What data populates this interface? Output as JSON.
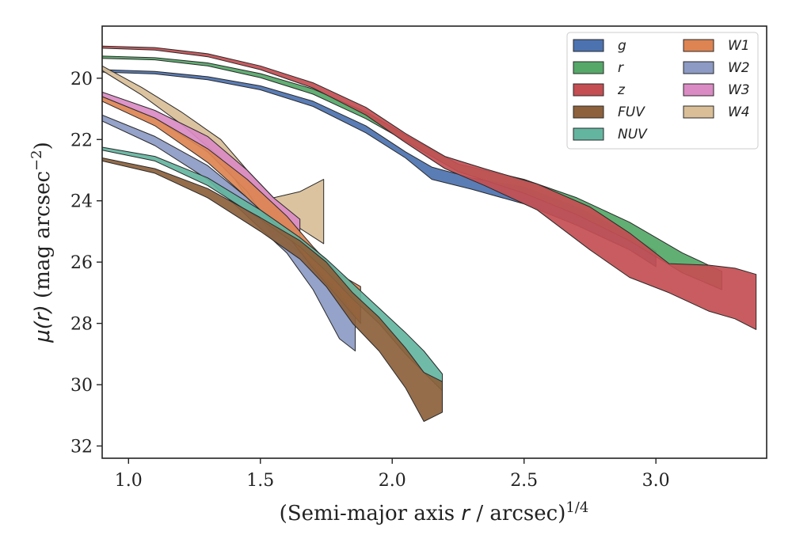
{
  "chart_data": {
    "type": "area",
    "xlabel": "(Semi-major axis r / arcsec)1/4",
    "ylabel": "μ(r) (mag arcsec−2)",
    "xlabel_parts": {
      "pre": "(Semi-major axis ",
      "var": "r",
      "post": " / arcsec)",
      "sup": "1/4"
    },
    "ylabel_parts": {
      "var": "μ(r)",
      "post": " (mag arcsec",
      "sup": "−2",
      "end": ")"
    },
    "xlim": [
      0.9,
      3.42
    ],
    "ylim": [
      32.4,
      18.3
    ],
    "y_inverted": true,
    "xticks": [
      1.0,
      1.5,
      2.0,
      2.5,
      3.0
    ],
    "xtick_labels": [
      "1.0",
      "1.5",
      "2.0",
      "2.5",
      "3.0"
    ],
    "yticks": [
      20,
      22,
      24,
      26,
      28,
      30,
      32
    ],
    "ytick_labels": [
      "20",
      "22",
      "24",
      "26",
      "28",
      "30",
      "32"
    ],
    "legend_position": "top-right",
    "series": [
      {
        "name": "g",
        "color": "#4C72B0",
        "upper": [
          [
            0.9,
            19.72
          ],
          [
            1.1,
            19.78
          ],
          [
            1.3,
            19.95
          ],
          [
            1.5,
            20.25
          ],
          [
            1.7,
            20.75
          ],
          [
            1.9,
            21.55
          ],
          [
            2.05,
            22.4
          ],
          [
            2.15,
            22.9
          ],
          [
            2.3,
            23.25
          ],
          [
            2.5,
            23.55
          ],
          [
            2.7,
            24.2
          ],
          [
            2.9,
            25.1
          ],
          [
            3.0,
            25.65
          ]
        ],
        "lower": [
          [
            0.9,
            19.8
          ],
          [
            1.1,
            19.86
          ],
          [
            1.3,
            20.05
          ],
          [
            1.5,
            20.38
          ],
          [
            1.7,
            20.92
          ],
          [
            1.9,
            21.78
          ],
          [
            2.05,
            22.6
          ],
          [
            2.15,
            23.3
          ],
          [
            2.3,
            23.62
          ],
          [
            2.5,
            24.1
          ],
          [
            2.7,
            24.8
          ],
          [
            2.9,
            25.6
          ],
          [
            3.0,
            26.15
          ]
        ]
      },
      {
        "name": "r",
        "color": "#55A868",
        "upper": [
          [
            0.9,
            19.28
          ],
          [
            1.1,
            19.33
          ],
          [
            1.3,
            19.5
          ],
          [
            1.5,
            19.85
          ],
          [
            1.7,
            20.35
          ],
          [
            1.9,
            21.1
          ],
          [
            2.05,
            21.85
          ],
          [
            2.25,
            22.8
          ],
          [
            2.5,
            23.3
          ],
          [
            2.7,
            23.9
          ],
          [
            2.9,
            24.7
          ],
          [
            3.1,
            25.7
          ],
          [
            3.25,
            26.3
          ]
        ],
        "lower": [
          [
            0.9,
            19.35
          ],
          [
            1.1,
            19.4
          ],
          [
            1.3,
            19.6
          ],
          [
            1.5,
            19.98
          ],
          [
            1.7,
            20.52
          ],
          [
            1.9,
            21.32
          ],
          [
            2.05,
            22.05
          ],
          [
            2.25,
            23.05
          ],
          [
            2.5,
            23.75
          ],
          [
            2.7,
            24.45
          ],
          [
            2.9,
            25.3
          ],
          [
            3.1,
            26.35
          ],
          [
            3.25,
            26.9
          ]
        ]
      },
      {
        "name": "z",
        "color": "#C44E52",
        "upper": [
          [
            0.9,
            18.95
          ],
          [
            1.1,
            19.0
          ],
          [
            1.3,
            19.2
          ],
          [
            1.5,
            19.6
          ],
          [
            1.7,
            20.15
          ],
          [
            1.9,
            20.95
          ],
          [
            2.05,
            21.8
          ],
          [
            2.2,
            22.55
          ],
          [
            2.35,
            22.95
          ],
          [
            2.55,
            23.45
          ],
          [
            2.75,
            24.2
          ],
          [
            2.9,
            25.05
          ],
          [
            3.05,
            26.05
          ],
          [
            3.2,
            26.1
          ],
          [
            3.3,
            26.2
          ],
          [
            3.38,
            26.4
          ]
        ],
        "lower": [
          [
            0.9,
            19.02
          ],
          [
            1.1,
            19.08
          ],
          [
            1.3,
            19.3
          ],
          [
            1.5,
            19.72
          ],
          [
            1.7,
            20.32
          ],
          [
            1.9,
            21.2
          ],
          [
            2.05,
            22.1
          ],
          [
            2.2,
            22.95
          ],
          [
            2.35,
            23.5
          ],
          [
            2.55,
            24.3
          ],
          [
            2.75,
            25.6
          ],
          [
            2.9,
            26.5
          ],
          [
            3.05,
            27.0
          ],
          [
            3.2,
            27.6
          ],
          [
            3.3,
            27.85
          ],
          [
            3.38,
            28.2
          ]
        ]
      },
      {
        "name": "FUV",
        "color": "#8C613C",
        "upper": [
          [
            0.9,
            22.6
          ],
          [
            1.1,
            22.95
          ],
          [
            1.3,
            23.6
          ],
          [
            1.5,
            24.55
          ],
          [
            1.65,
            25.3
          ],
          [
            1.75,
            26.0
          ],
          [
            1.85,
            27.0
          ],
          [
            1.95,
            27.8
          ],
          [
            2.05,
            28.8
          ],
          [
            2.12,
            29.6
          ],
          [
            2.19,
            29.9
          ]
        ],
        "lower": [
          [
            0.9,
            22.7
          ],
          [
            1.1,
            23.1
          ],
          [
            1.3,
            23.9
          ],
          [
            1.5,
            25.0
          ],
          [
            1.65,
            25.9
          ],
          [
            1.75,
            26.8
          ],
          [
            1.85,
            28.0
          ],
          [
            1.95,
            28.9
          ],
          [
            2.05,
            30.1
          ],
          [
            2.12,
            31.2
          ],
          [
            2.19,
            30.9
          ]
        ]
      },
      {
        "name": "NUV",
        "color": "#64B5A0",
        "upper": [
          [
            0.9,
            22.25
          ],
          [
            1.1,
            22.55
          ],
          [
            1.3,
            23.25
          ],
          [
            1.5,
            24.3
          ],
          [
            1.65,
            25.2
          ],
          [
            1.75,
            25.9
          ],
          [
            1.85,
            26.7
          ],
          [
            1.95,
            27.5
          ],
          [
            2.05,
            28.3
          ],
          [
            2.12,
            28.9
          ],
          [
            2.19,
            29.65
          ]
        ],
        "lower": [
          [
            0.9,
            22.35
          ],
          [
            1.1,
            22.7
          ],
          [
            1.3,
            23.5
          ],
          [
            1.5,
            24.6
          ],
          [
            1.65,
            25.5
          ],
          [
            1.75,
            26.3
          ],
          [
            1.85,
            27.2
          ],
          [
            1.95,
            28.0
          ],
          [
            2.05,
            29.0
          ],
          [
            2.12,
            29.6
          ],
          [
            2.19,
            30.2
          ]
        ]
      },
      {
        "name": "W1",
        "color": "#DD8452",
        "upper": [
          [
            0.9,
            20.6
          ],
          [
            1.1,
            21.3
          ],
          [
            1.3,
            22.3
          ],
          [
            1.45,
            23.3
          ],
          [
            1.6,
            24.5
          ],
          [
            1.7,
            25.5
          ],
          [
            1.8,
            26.4
          ],
          [
            1.88,
            26.8
          ]
        ],
        "lower": [
          [
            0.9,
            20.75
          ],
          [
            1.1,
            21.55
          ],
          [
            1.3,
            22.75
          ],
          [
            1.45,
            23.9
          ],
          [
            1.6,
            25.1
          ],
          [
            1.7,
            26.2
          ],
          [
            1.8,
            27.2
          ],
          [
            1.88,
            28.0
          ]
        ]
      },
      {
        "name": "W2",
        "color": "#8C9AC4",
        "upper": [
          [
            0.9,
            21.2
          ],
          [
            1.1,
            21.9
          ],
          [
            1.3,
            22.85
          ],
          [
            1.45,
            23.9
          ],
          [
            1.6,
            25.1
          ],
          [
            1.7,
            26.1
          ],
          [
            1.8,
            27.0
          ],
          [
            1.86,
            27.8
          ]
        ],
        "lower": [
          [
            0.9,
            21.4
          ],
          [
            1.1,
            22.2
          ],
          [
            1.3,
            23.3
          ],
          [
            1.45,
            24.5
          ],
          [
            1.6,
            25.7
          ],
          [
            1.7,
            26.9
          ],
          [
            1.8,
            28.5
          ],
          [
            1.86,
            28.9
          ]
        ]
      },
      {
        "name": "W3",
        "color": "#DA8BC3",
        "upper": [
          [
            0.9,
            20.45
          ],
          [
            1.1,
            21.05
          ],
          [
            1.3,
            21.9
          ],
          [
            1.45,
            23.0
          ],
          [
            1.55,
            23.9
          ],
          [
            1.65,
            24.6
          ]
        ],
        "lower": [
          [
            0.9,
            20.6
          ],
          [
            1.1,
            21.3
          ],
          [
            1.3,
            22.4
          ],
          [
            1.45,
            23.7
          ],
          [
            1.55,
            25.0
          ],
          [
            1.65,
            25.7
          ]
        ]
      },
      {
        "name": "W4",
        "color": "#D9BE98",
        "upper": [
          [
            0.9,
            19.6
          ],
          [
            1.05,
            20.3
          ],
          [
            1.2,
            21.1
          ],
          [
            1.35,
            22.0
          ],
          [
            1.45,
            23.0
          ],
          [
            1.55,
            23.9
          ],
          [
            1.65,
            23.7
          ],
          [
            1.74,
            23.3
          ]
        ],
        "lower": [
          [
            0.9,
            19.75
          ],
          [
            1.05,
            20.55
          ],
          [
            1.2,
            21.5
          ],
          [
            1.35,
            22.6
          ],
          [
            1.45,
            23.9
          ],
          [
            1.55,
            25.2
          ],
          [
            1.65,
            24.9
          ],
          [
            1.74,
            25.4
          ]
        ]
      }
    ]
  }
}
